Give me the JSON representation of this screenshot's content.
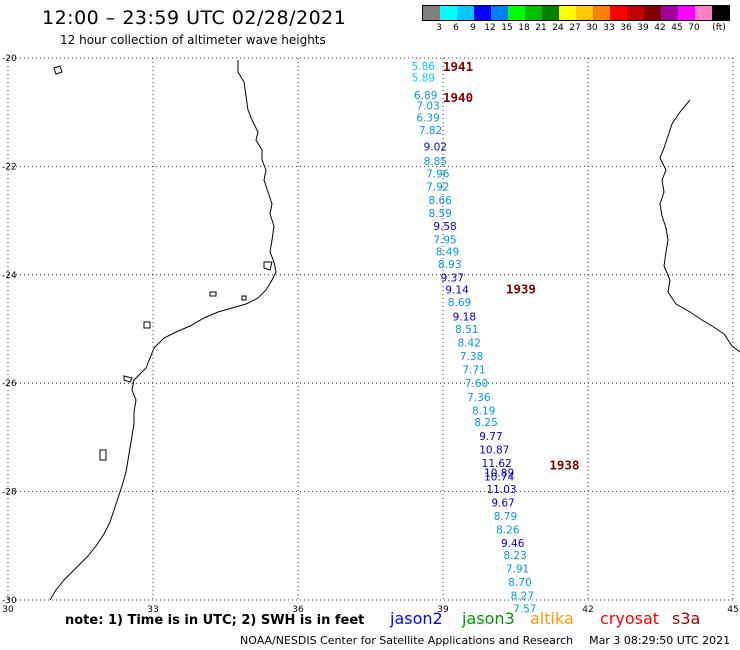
{
  "title": "12:00 – 23:59 UTC 02/28/2021",
  "subtitle": "12 hour collection of altimeter wave heights",
  "legend": {
    "colors": [
      "#808080",
      "#00ffff",
      "#00c8ff",
      "#0000ff",
      "#0080ff",
      "#00ff00",
      "#00c000",
      "#008000",
      "#ffff00",
      "#ffc800",
      "#ff8000",
      "#ff0000",
      "#c00000",
      "#800000",
      "#a000a0",
      "#ff00ff",
      "#ff80c0",
      "#000000"
    ],
    "labels": [
      "3",
      "6",
      "9",
      "12",
      "15",
      "18",
      "21",
      "24",
      "27",
      "30",
      "33",
      "36",
      "39",
      "42",
      "45",
      "70"
    ],
    "unit": "(ft)"
  },
  "axes": {
    "lon_ticks": [
      "30",
      "33",
      "36",
      "39",
      "42",
      "45"
    ],
    "lat_ticks": [
      "-20",
      "-22",
      "-24",
      "-26",
      "-28",
      "-30"
    ]
  },
  "passes": [
    {
      "label": "1941",
      "lat": -20.15,
      "lon": 39.0
    },
    {
      "label": "1940",
      "lat": -20.72,
      "lon": 39.0
    },
    {
      "label": "1939",
      "lat": -24.25,
      "lon": 40.3
    },
    {
      "label": "1938",
      "lat": -27.5,
      "lon": 41.2
    }
  ],
  "observations": [
    {
      "v": "5.86",
      "lat": -20.15,
      "lon": 38.35,
      "c": "#00ccff"
    },
    {
      "v": "5.89",
      "lat": -20.36,
      "lon": 38.35,
      "c": "#00ccff"
    },
    {
      "v": "6.89",
      "lat": -20.68,
      "lon": 38.4,
      "c": "#0099dd"
    },
    {
      "v": "7.03",
      "lat": -20.88,
      "lon": 38.45,
      "c": "#0099dd"
    },
    {
      "v": "6.39",
      "lat": -21.1,
      "lon": 38.45,
      "c": "#0099dd"
    },
    {
      "v": "7.82",
      "lat": -21.33,
      "lon": 38.5,
      "c": "#0099dd"
    },
    {
      "v": "9.02",
      "lat": -21.63,
      "lon": 38.6,
      "c": "#0000cc"
    },
    {
      "v": "8.85",
      "lat": -21.9,
      "lon": 38.6,
      "c": "#0099dd"
    },
    {
      "v": "7.96",
      "lat": -22.13,
      "lon": 38.65,
      "c": "#0099dd"
    },
    {
      "v": "7.92",
      "lat": -22.37,
      "lon": 38.65,
      "c": "#0099dd"
    },
    {
      "v": "8.66",
      "lat": -22.62,
      "lon": 38.7,
      "c": "#0099dd"
    },
    {
      "v": "8.59",
      "lat": -22.86,
      "lon": 38.7,
      "c": "#0099dd"
    },
    {
      "v": "9.58",
      "lat": -23.1,
      "lon": 38.8,
      "c": "#0000cc"
    },
    {
      "v": "7.95",
      "lat": -23.35,
      "lon": 38.8,
      "c": "#0099dd"
    },
    {
      "v": "8.49",
      "lat": -23.57,
      "lon": 38.85,
      "c": "#0099dd"
    },
    {
      "v": "8.93",
      "lat": -23.8,
      "lon": 38.9,
      "c": "#0099dd"
    },
    {
      "v": "9.37",
      "lat": -24.05,
      "lon": 38.95,
      "c": "#0000cc"
    },
    {
      "v": "9.14",
      "lat": -24.27,
      "lon": 39.05,
      "c": "#0000cc"
    },
    {
      "v": "8.69",
      "lat": -24.5,
      "lon": 39.1,
      "c": "#0099dd"
    },
    {
      "v": "9.18",
      "lat": -24.77,
      "lon": 39.2,
      "c": "#0000cc"
    },
    {
      "v": "8.51",
      "lat": -25.0,
      "lon": 39.25,
      "c": "#0099dd"
    },
    {
      "v": "8.42",
      "lat": -25.25,
      "lon": 39.3,
      "c": "#0099dd"
    },
    {
      "v": "7.38",
      "lat": -25.5,
      "lon": 39.35,
      "c": "#0099dd"
    },
    {
      "v": "7.71",
      "lat": -25.75,
      "lon": 39.4,
      "c": "#0099dd"
    },
    {
      "v": "7.60",
      "lat": -26.0,
      "lon": 39.45,
      "c": "#0099dd"
    },
    {
      "v": "7.36",
      "lat": -26.25,
      "lon": 39.5,
      "c": "#0099dd"
    },
    {
      "v": "8.19",
      "lat": -26.5,
      "lon": 39.6,
      "c": "#0099dd"
    },
    {
      "v": "8.25",
      "lat": -26.72,
      "lon": 39.65,
      "c": "#0099dd"
    },
    {
      "v": "9.77",
      "lat": -26.97,
      "lon": 39.75,
      "c": "#0000cc"
    },
    {
      "v": "10.87",
      "lat": -27.22,
      "lon": 39.75,
      "c": "#0000cc"
    },
    {
      "v": "11.62",
      "lat": -27.47,
      "lon": 39.8,
      "c": "#0000cc"
    },
    {
      "v": "10.89",
      "lat": -27.65,
      "lon": 39.85,
      "c": "#0000cc"
    },
    {
      "v": "10.74",
      "lat": -27.72,
      "lon": 39.85,
      "c": "#0000cc"
    },
    {
      "v": "11.03",
      "lat": -27.95,
      "lon": 39.9,
      "c": "#0000cc"
    },
    {
      "v": "9.67",
      "lat": -28.2,
      "lon": 40.0,
      "c": "#0000cc"
    },
    {
      "v": "8.79",
      "lat": -28.45,
      "lon": 40.05,
      "c": "#0099dd"
    },
    {
      "v": "8.26",
      "lat": -28.7,
      "lon": 40.1,
      "c": "#0099dd"
    },
    {
      "v": "9.46",
      "lat": -28.95,
      "lon": 40.2,
      "c": "#0000cc"
    },
    {
      "v": "8.23",
      "lat": -29.17,
      "lon": 40.25,
      "c": "#0099dd"
    },
    {
      "v": "7.91",
      "lat": -29.42,
      "lon": 40.3,
      "c": "#0099dd"
    },
    {
      "v": "8.70",
      "lat": -29.67,
      "lon": 40.35,
      "c": "#0099dd"
    },
    {
      "v": "8.27",
      "lat": -29.92,
      "lon": 40.4,
      "c": "#0099dd"
    },
    {
      "v": "7.57",
      "lat": -30.16,
      "lon": 40.45,
      "c": "#0099dd"
    }
  ],
  "note": "note:  1) Time is in UTC;  2) SWH is in feet",
  "satellites": [
    {
      "name": "jason2",
      "color": "#0000ff"
    },
    {
      "name": "jason3",
      "color": "#009900"
    },
    {
      "name": "altika",
      "color": "#ff9900"
    },
    {
      "name": "cryosat",
      "color": "#ff0000"
    },
    {
      "name": "s3a",
      "color": "#aa0000"
    }
  ],
  "footer": {
    "credit": "NOAA/NESDIS Center for Satellite Applications and Research",
    "timestamp": "Mar  3 08:29:50 UTC 2021"
  }
}
